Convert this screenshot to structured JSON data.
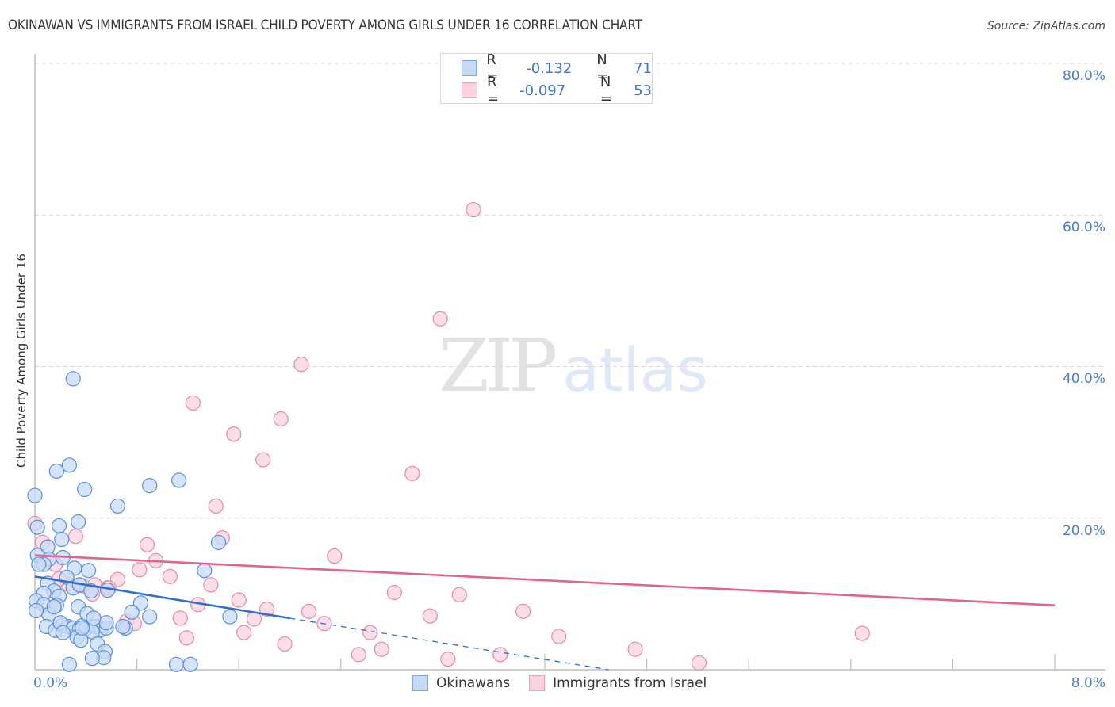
{
  "header": {
    "title": "OKINAWAN VS IMMIGRANTS FROM ISRAEL CHILD POVERTY AMONG GIRLS UNDER 16 CORRELATION CHART",
    "source": "Source: ZipAtlas.com"
  },
  "watermark": {
    "zip": "ZIP",
    "atlas": "atlas"
  },
  "axes": {
    "y_label": "Child Poverty Among Girls Under 16",
    "y_ticks": [
      "80.0%",
      "60.0%",
      "40.0%",
      "20.0%"
    ],
    "x_min_label": "0.0%",
    "x_max_label": "8.0%"
  },
  "legend_top": {
    "rows": [
      {
        "r_label": "R =",
        "r_value": "-0.132",
        "n_label": "N =",
        "n_value": "71",
        "color": "#a9c8f0"
      },
      {
        "r_label": "R =",
        "r_value": "-0.097",
        "n_label": "N =",
        "n_value": "53",
        "color": "#f6bccf"
      }
    ]
  },
  "legend_bottom": {
    "items": [
      {
        "label": "Okinawans",
        "color": "#a9c8f0"
      },
      {
        "label": "Immigrants from Israel",
        "color": "#f6bccf"
      }
    ]
  },
  "colors": {
    "blue_fill": "#c7dbf5",
    "blue_stroke": "#5b8fd9",
    "blue_line": "#2f6fd1",
    "pink_fill": "#f9d3df",
    "pink_stroke": "#e58aa8",
    "pink_line": "#e06390",
    "tick_text": "#4a7cc9",
    "grid": "#d9d9d9"
  },
  "chart_data": {
    "type": "scatter",
    "title": "OKINAWAN VS IMMIGRANTS FROM ISRAEL CHILD POVERTY AMONG GIRLS UNDER 16 CORRELATION CHART",
    "xlabel": "",
    "ylabel": "Child Poverty Among Girls Under 16",
    "xlim": [
      0,
      8
    ],
    "ylim": [
      0,
      80
    ],
    "x_unit": "%",
    "y_unit": "%",
    "grid": true,
    "legend_position": "bottom",
    "series": [
      {
        "name": "Okinawans",
        "R": -0.132,
        "N": 71,
        "trend": {
          "x": [
            0,
            2.0
          ],
          "y": [
            12.3,
            6.8
          ],
          "extended_dashed_to": [
            4.5,
            0.0
          ]
        },
        "points": [
          [
            0.3,
            38.4
          ],
          [
            0.17,
            26.2
          ],
          [
            0.27,
            27.0
          ],
          [
            0.39,
            23.8
          ],
          [
            0.65,
            21.6
          ],
          [
            0.9,
            24.3
          ],
          [
            1.13,
            25.0
          ],
          [
            0.0,
            23.0
          ],
          [
            0.34,
            19.5
          ],
          [
            0.02,
            18.8
          ],
          [
            0.19,
            19.0
          ],
          [
            0.1,
            16.2
          ],
          [
            0.21,
            17.2
          ],
          [
            0.02,
            15.1
          ],
          [
            0.11,
            14.6
          ],
          [
            0.22,
            14.8
          ],
          [
            0.31,
            13.4
          ],
          [
            0.07,
            13.9
          ],
          [
            0.03,
            13.9
          ],
          [
            0.42,
            13.1
          ],
          [
            0.25,
            12.2
          ],
          [
            1.33,
            13.1
          ],
          [
            0.1,
            11.4
          ],
          [
            0.15,
            10.4
          ],
          [
            0.3,
            10.8
          ],
          [
            0.35,
            11.2
          ],
          [
            0.44,
            10.4
          ],
          [
            0.07,
            10.1
          ],
          [
            0.19,
            9.7
          ],
          [
            0.01,
            9.1
          ],
          [
            0.07,
            8.6
          ],
          [
            0.17,
            8.5
          ],
          [
            0.11,
            7.3
          ],
          [
            0.15,
            8.3
          ],
          [
            0.34,
            8.3
          ],
          [
            0.83,
            8.8
          ],
          [
            0.76,
            7.6
          ],
          [
            1.53,
            7.0
          ],
          [
            0.9,
            7.0
          ],
          [
            1.44,
            16.8
          ],
          [
            0.57,
            10.5
          ],
          [
            0.09,
            5.7
          ],
          [
            0.16,
            5.2
          ],
          [
            0.22,
            5.9
          ],
          [
            0.26,
            5.7
          ],
          [
            0.3,
            5.5
          ],
          [
            0.35,
            5.4
          ],
          [
            0.37,
            5.8
          ],
          [
            0.2,
            6.2
          ],
          [
            0.4,
            5.4
          ],
          [
            0.48,
            5.7
          ],
          [
            0.52,
            5.3
          ],
          [
            0.56,
            5.5
          ],
          [
            0.71,
            5.5
          ],
          [
            0.45,
            5.0
          ],
          [
            0.56,
            6.2
          ],
          [
            0.33,
            4.3
          ],
          [
            0.36,
            3.9
          ],
          [
            0.22,
            4.9
          ],
          [
            0.37,
            5.5
          ],
          [
            0.49,
            3.4
          ],
          [
            0.55,
            2.4
          ],
          [
            0.54,
            1.6
          ],
          [
            0.45,
            1.5
          ],
          [
            0.27,
            0.7
          ],
          [
            1.11,
            0.7
          ],
          [
            1.22,
            0.7
          ],
          [
            0.01,
            7.8
          ],
          [
            0.69,
            5.7
          ],
          [
            0.41,
            7.4
          ],
          [
            0.46,
            6.8
          ]
        ]
      },
      {
        "name": "Immigrants from Israel",
        "R": -0.097,
        "N": 53,
        "trend": {
          "x": [
            0,
            8.0
          ],
          "y": [
            15.1,
            8.5
          ]
        },
        "points": [
          [
            3.44,
            60.7
          ],
          [
            3.18,
            46.3
          ],
          [
            2.09,
            40.3
          ],
          [
            1.24,
            35.2
          ],
          [
            1.93,
            33.1
          ],
          [
            1.56,
            31.1
          ],
          [
            1.79,
            27.7
          ],
          [
            2.96,
            25.9
          ],
          [
            1.42,
            21.6
          ],
          [
            0.0,
            19.3
          ],
          [
            0.32,
            17.6
          ],
          [
            0.06,
            16.8
          ],
          [
            1.47,
            17.4
          ],
          [
            0.88,
            16.5
          ],
          [
            2.35,
            15.0
          ],
          [
            0.95,
            14.4
          ],
          [
            0.82,
            13.2
          ],
          [
            1.06,
            12.3
          ],
          [
            0.65,
            11.9
          ],
          [
            0.47,
            11.2
          ],
          [
            1.38,
            11.2
          ],
          [
            2.82,
            10.2
          ],
          [
            3.33,
            9.9
          ],
          [
            1.6,
            9.2
          ],
          [
            0.45,
            10.0
          ],
          [
            0.57,
            10.8
          ],
          [
            1.28,
            8.6
          ],
          [
            1.82,
            8.0
          ],
          [
            2.15,
            7.7
          ],
          [
            3.83,
            7.7
          ],
          [
            3.1,
            7.1
          ],
          [
            1.14,
            6.8
          ],
          [
            1.72,
            6.7
          ],
          [
            2.27,
            6.1
          ],
          [
            0.72,
            6.4
          ],
          [
            0.78,
            6.1
          ],
          [
            1.64,
            4.9
          ],
          [
            2.63,
            4.9
          ],
          [
            4.11,
            4.4
          ],
          [
            6.49,
            4.8
          ],
          [
            1.19,
            4.2
          ],
          [
            1.96,
            3.4
          ],
          [
            2.72,
            2.7
          ],
          [
            2.54,
            2.0
          ],
          [
            4.71,
            2.7
          ],
          [
            3.65,
            2.0
          ],
          [
            3.24,
            1.4
          ],
          [
            5.21,
            0.9
          ],
          [
            0.26,
            11.3
          ],
          [
            0.19,
            12.0
          ],
          [
            0.37,
            11.1
          ],
          [
            0.58,
            10.8
          ],
          [
            0.16,
            13.9
          ]
        ]
      }
    ]
  }
}
